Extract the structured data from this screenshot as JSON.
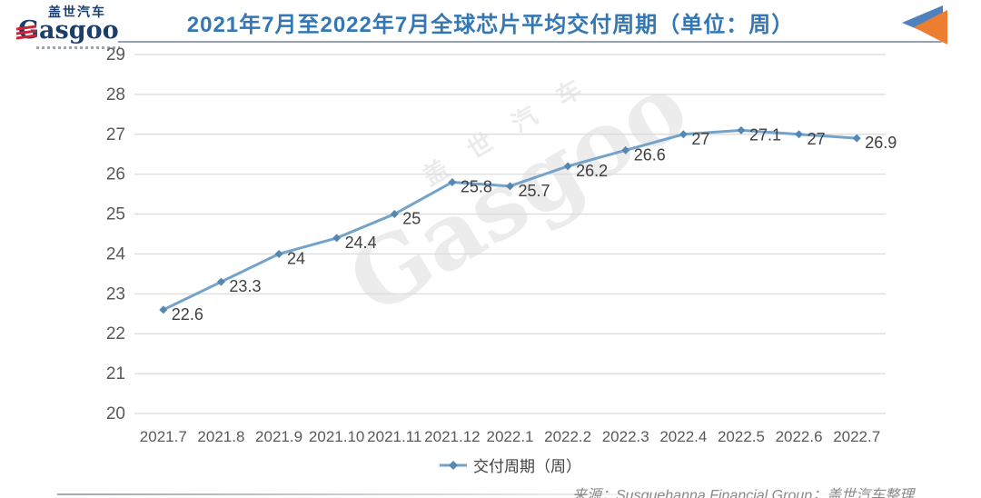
{
  "header": {
    "title": "2021年7月至2022年7月全球芯片平均交付周期（单位：周）",
    "title_color": "#3377b4",
    "logo": {
      "cn": "盖世汽车",
      "en": "Gasgoo"
    },
    "corner_icon": {
      "name": "double-back-triangles",
      "blue": "#4f81bd",
      "orange": "#ed7d31"
    }
  },
  "chart_data": {
    "type": "line",
    "title": "2021年7月至2022年7月全球芯片平均交付周期（单位：周）",
    "categories": [
      "2021.7",
      "2021.8",
      "2021.9",
      "2021.10",
      "2021.11",
      "2021.12",
      "2022.1",
      "2022.2",
      "2022.3",
      "2022.4",
      "2022.5",
      "2022.6",
      "2022.7"
    ],
    "series": [
      {
        "name": "交付周期（周）",
        "values": [
          22.6,
          23.3,
          24,
          24.4,
          25,
          25.8,
          25.7,
          26.2,
          26.6,
          27,
          27.1,
          27,
          26.9
        ],
        "color": "#73a3ca",
        "marker": "diamond",
        "marker_color": "#5488b2"
      }
    ],
    "xlabel": "",
    "ylabel": "",
    "ylim": [
      20,
      29
    ],
    "ytick_step": 1,
    "grid": true,
    "gridline_color": "#d9d9d9",
    "axis_text_color": "#595959",
    "data_label_color": "#3f3f3f",
    "data_labels": true,
    "legend_position": "bottom"
  },
  "legend": {
    "label": "交付周期（周）"
  },
  "watermark": {
    "cn": "盖世汽车",
    "en": "Gasgoo"
  },
  "footer": {
    "source": "来源：Susquehanna Financial Group；盖世汽车整理"
  }
}
